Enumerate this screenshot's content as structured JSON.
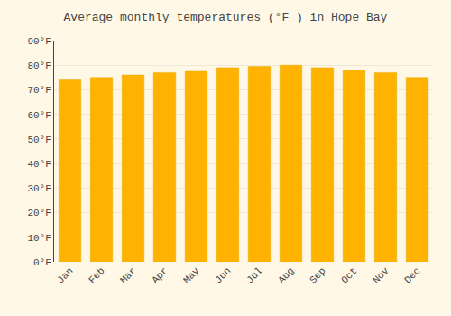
{
  "chart_data": {
    "type": "bar",
    "title": "Average monthly temperatures (°F ) in Hope Bay",
    "categories": [
      "Jan",
      "Feb",
      "Mar",
      "Apr",
      "May",
      "Jun",
      "Jul",
      "Aug",
      "Sep",
      "Oct",
      "Nov",
      "Dec"
    ],
    "values": [
      74,
      75,
      76,
      77,
      77.5,
      79,
      79.5,
      80,
      79,
      78,
      77,
      75
    ],
    "color": "#FFB300",
    "ylim": [
      0,
      90
    ],
    "yticks": [
      {
        "value": 0,
        "label": "0°F"
      },
      {
        "value": 10,
        "label": "10°F"
      },
      {
        "value": 20,
        "label": "20°F"
      },
      {
        "value": 30,
        "label": "30°F"
      },
      {
        "value": 40,
        "label": "40°F"
      },
      {
        "value": 50,
        "label": "50°F"
      },
      {
        "value": 60,
        "label": "60°F"
      },
      {
        "value": 70,
        "label": "70°F"
      },
      {
        "value": 80,
        "label": "80°F"
      },
      {
        "value": 90,
        "label": "90°F"
      }
    ],
    "grid": true
  }
}
